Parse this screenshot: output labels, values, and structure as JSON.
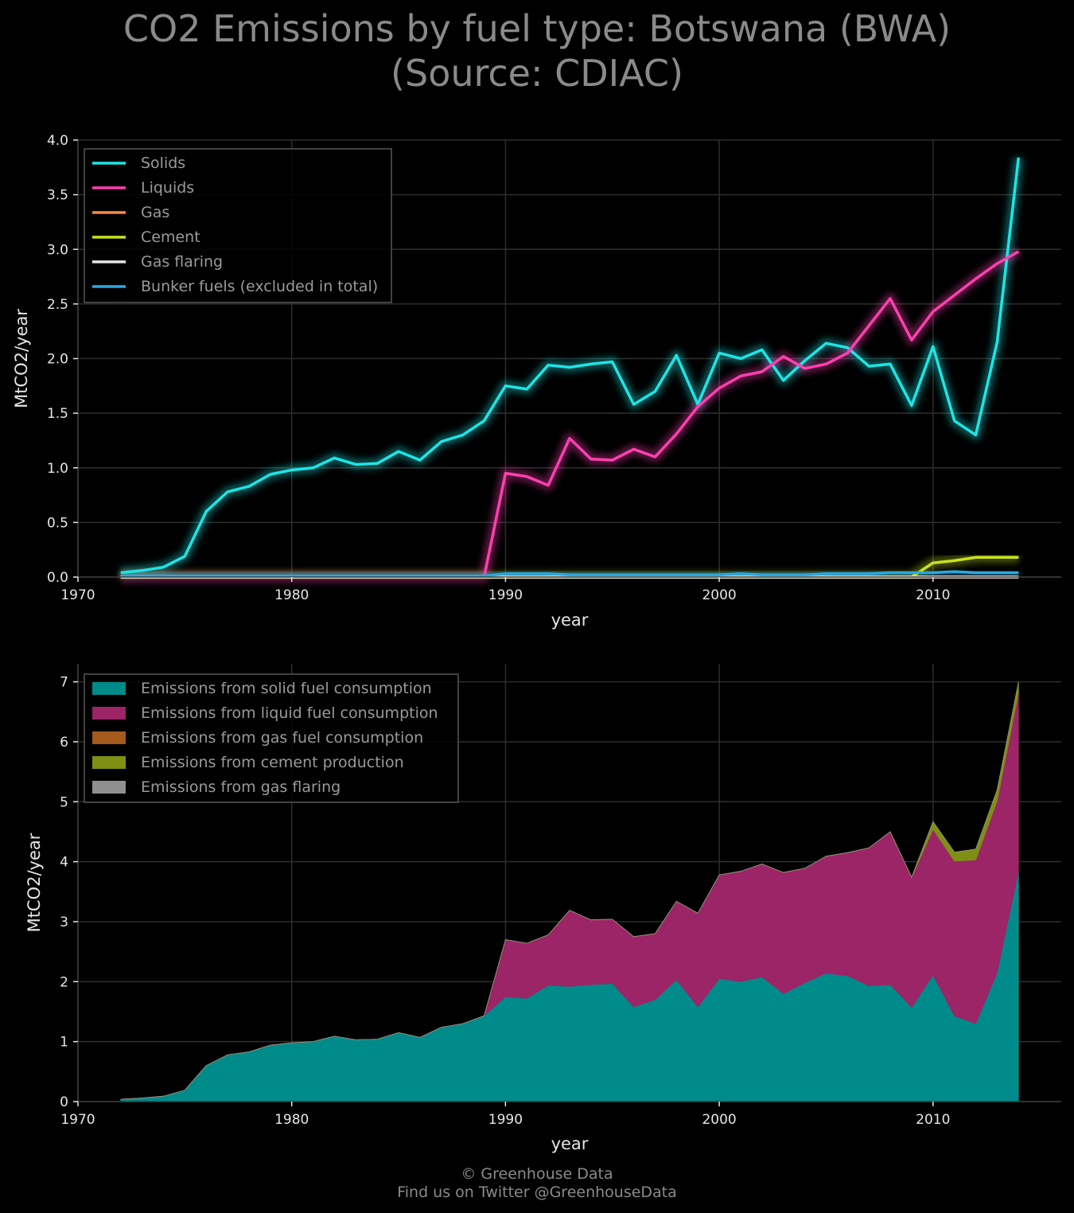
{
  "title": {
    "line1": "CO2 Emissions by fuel type: Botswana (BWA)",
    "line2": "(Source: CDIAC)"
  },
  "footer": {
    "line1": "© Greenhouse Data",
    "line2": "Find us on Twitter @GreenhouseData"
  },
  "chart_data": [
    {
      "type": "line",
      "xlabel": "year",
      "ylabel": "MtCO2/year",
      "xlim": [
        1970,
        2016
      ],
      "ylim": [
        0,
        4.0
      ],
      "x_ticks": [
        "1970",
        "1980",
        "1990",
        "2000",
        "2010"
      ],
      "y_ticks": [
        "0.0",
        "0.5",
        "1.0",
        "1.5",
        "2.0",
        "2.5",
        "3.0",
        "3.5",
        "4.0"
      ],
      "grid": true,
      "legend_position": "top-left",
      "x": [
        1972,
        1973,
        1974,
        1975,
        1976,
        1977,
        1978,
        1979,
        1980,
        1981,
        1982,
        1983,
        1984,
        1985,
        1986,
        1987,
        1988,
        1989,
        1990,
        1991,
        1992,
        1993,
        1994,
        1995,
        1996,
        1997,
        1998,
        1999,
        2000,
        2001,
        2002,
        2003,
        2004,
        2005,
        2006,
        2007,
        2008,
        2009,
        2010,
        2011,
        2012,
        2013,
        2014
      ],
      "series": [
        {
          "name": "Solids",
          "color": "#1de5e5",
          "values": [
            0.04,
            0.06,
            0.09,
            0.19,
            0.6,
            0.78,
            0.83,
            0.94,
            0.98,
            1.0,
            1.09,
            1.03,
            1.04,
            1.15,
            1.07,
            1.24,
            1.3,
            1.43,
            1.75,
            1.72,
            1.94,
            1.92,
            1.95,
            1.97,
            1.58,
            1.7,
            2.03,
            1.58,
            2.05,
            2.0,
            2.08,
            1.8,
            1.98,
            2.14,
            2.1,
            1.93,
            1.95,
            1.57,
            2.11,
            1.43,
            1.3,
            2.15,
            3.84
          ]
        },
        {
          "name": "Liquids",
          "color": "#ff3fb0",
          "values": [
            0,
            0,
            0,
            0,
            0,
            0,
            0,
            0,
            0,
            0,
            0,
            0,
            0,
            0,
            0,
            0,
            0,
            0,
            0.95,
            0.92,
            0.84,
            1.27,
            1.08,
            1.07,
            1.17,
            1.1,
            1.31,
            1.56,
            1.73,
            1.84,
            1.88,
            2.02,
            1.91,
            1.95,
            2.05,
            2.3,
            2.55,
            2.17,
            2.43,
            2.58,
            2.73,
            2.87,
            2.98
          ]
        },
        {
          "name": "Gas",
          "color": "#ff8a3a",
          "values": [
            0,
            0,
            0,
            0,
            0,
            0,
            0,
            0,
            0,
            0,
            0,
            0,
            0,
            0,
            0,
            0,
            0,
            0,
            0,
            0,
            0,
            0,
            0,
            0,
            0,
            0,
            0,
            0,
            0,
            0,
            0,
            0,
            0,
            0,
            0,
            0,
            0,
            0,
            0,
            0,
            0,
            0,
            0
          ]
        },
        {
          "name": "Cement",
          "color": "#c8e21c",
          "values": [
            0,
            0,
            0,
            0,
            0,
            0,
            0,
            0,
            0,
            0,
            0,
            0,
            0,
            0,
            0,
            0,
            0,
            0,
            0,
            0,
            0,
            0,
            0,
            0,
            0,
            0,
            0,
            0,
            0,
            0,
            0,
            0,
            0,
            0,
            0,
            0,
            0,
            0,
            0.13,
            0.15,
            0.18,
            0.18,
            0.18
          ]
        },
        {
          "name": "Gas flaring",
          "color": "#e6e6e6",
          "values": [
            0,
            0,
            0,
            0,
            0,
            0,
            0,
            0,
            0,
            0,
            0,
            0,
            0,
            0,
            0,
            0,
            0,
            0,
            0,
            0,
            0,
            0,
            0,
            0,
            0,
            0,
            0,
            0,
            0,
            0,
            0,
            0,
            0,
            0,
            0,
            0,
            0,
            0,
            0,
            0,
            0,
            0,
            0
          ]
        },
        {
          "name": "Bunker fuels (excluded in total)",
          "color": "#2aa8e0",
          "values": [
            0.01,
            0.01,
            0.01,
            0.01,
            0.01,
            0.01,
            0.01,
            0.01,
            0.01,
            0.01,
            0.01,
            0.01,
            0.01,
            0.01,
            0.01,
            0.01,
            0.01,
            0.01,
            0.03,
            0.03,
            0.03,
            0.02,
            0.02,
            0.02,
            0.02,
            0.02,
            0.02,
            0.02,
            0.02,
            0.03,
            0.02,
            0.02,
            0.02,
            0.03,
            0.03,
            0.03,
            0.04,
            0.04,
            0.04,
            0.05,
            0.04,
            0.04,
            0.04
          ]
        }
      ]
    },
    {
      "type": "area",
      "stacked": true,
      "xlabel": "year",
      "ylabel": "MtCO2/year",
      "xlim": [
        1970,
        2016
      ],
      "ylim": [
        0,
        7.3
      ],
      "x_ticks": [
        "1970",
        "1980",
        "1990",
        "2000",
        "2010"
      ],
      "y_ticks": [
        "0",
        "1",
        "2",
        "3",
        "4",
        "5",
        "6",
        "7"
      ],
      "grid": true,
      "legend_position": "top-left",
      "x": [
        1972,
        1973,
        1974,
        1975,
        1976,
        1977,
        1978,
        1979,
        1980,
        1981,
        1982,
        1983,
        1984,
        1985,
        1986,
        1987,
        1988,
        1989,
        1990,
        1991,
        1992,
        1993,
        1994,
        1995,
        1996,
        1997,
        1998,
        1999,
        2000,
        2001,
        2002,
        2003,
        2004,
        2005,
        2006,
        2007,
        2008,
        2009,
        2010,
        2011,
        2012,
        2013,
        2014
      ],
      "series": [
        {
          "name": "Emissions from solid fuel consumption",
          "color": "#008b8b",
          "values": [
            0.04,
            0.06,
            0.09,
            0.19,
            0.6,
            0.78,
            0.83,
            0.94,
            0.98,
            1.0,
            1.09,
            1.03,
            1.04,
            1.15,
            1.07,
            1.24,
            1.3,
            1.43,
            1.75,
            1.72,
            1.94,
            1.92,
            1.95,
            1.97,
            1.58,
            1.7,
            2.03,
            1.58,
            2.05,
            2.0,
            2.08,
            1.8,
            1.98,
            2.14,
            2.1,
            1.93,
            1.95,
            1.57,
            2.11,
            1.43,
            1.3,
            2.15,
            3.84
          ]
        },
        {
          "name": "Emissions from liquid fuel consumption",
          "color": "#9b2566",
          "values": [
            0,
            0,
            0,
            0,
            0,
            0,
            0,
            0,
            0,
            0,
            0,
            0,
            0,
            0,
            0,
            0,
            0,
            0,
            0.95,
            0.92,
            0.84,
            1.27,
            1.08,
            1.07,
            1.17,
            1.1,
            1.31,
            1.56,
            1.73,
            1.84,
            1.88,
            2.02,
            1.91,
            1.95,
            2.05,
            2.3,
            2.55,
            2.17,
            2.43,
            2.58,
            2.73,
            2.87,
            2.98
          ]
        },
        {
          "name": "Emissions from gas fuel consumption",
          "color": "#a35a1c",
          "values": [
            0,
            0,
            0,
            0,
            0,
            0,
            0,
            0,
            0,
            0,
            0,
            0,
            0,
            0,
            0,
            0,
            0,
            0,
            0,
            0,
            0,
            0,
            0,
            0,
            0,
            0,
            0,
            0,
            0,
            0,
            0,
            0,
            0,
            0,
            0,
            0,
            0,
            0,
            0,
            0,
            0,
            0,
            0
          ]
        },
        {
          "name": "Emissions from cement production",
          "color": "#7f8f14",
          "values": [
            0,
            0,
            0,
            0,
            0,
            0,
            0,
            0,
            0,
            0,
            0,
            0,
            0,
            0,
            0,
            0,
            0,
            0,
            0,
            0,
            0,
            0,
            0,
            0,
            0,
            0,
            0,
            0,
            0,
            0,
            0,
            0,
            0,
            0,
            0,
            0,
            0,
            0,
            0.13,
            0.15,
            0.18,
            0.18,
            0.18
          ]
        },
        {
          "name": "Emissions from gas flaring",
          "color": "#8f8f8f",
          "values": [
            0,
            0,
            0,
            0,
            0,
            0,
            0,
            0,
            0,
            0,
            0,
            0,
            0,
            0,
            0,
            0,
            0,
            0,
            0,
            0,
            0,
            0,
            0,
            0,
            0,
            0,
            0,
            0,
            0,
            0,
            0,
            0,
            0,
            0,
            0,
            0,
            0,
            0,
            0,
            0,
            0,
            0,
            0
          ]
        }
      ]
    }
  ]
}
